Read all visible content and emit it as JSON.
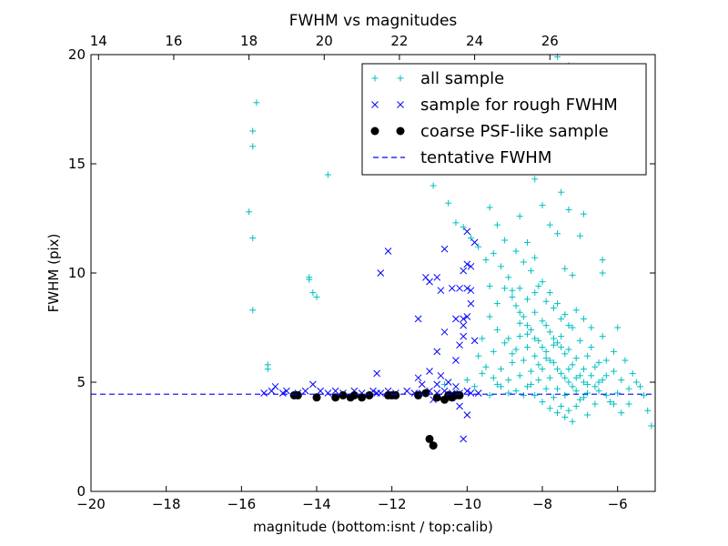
{
  "chart_data": {
    "type": "scatter",
    "title": "FWHM vs magnitudes",
    "xlabel": "magnitude (bottom:isnt / top:calib)",
    "ylabel": "FWHM (pix)",
    "xlim": [
      -20,
      -5
    ],
    "ylim": [
      0,
      20
    ],
    "x_ticks": [
      -20,
      -18,
      -16,
      -14,
      -12,
      -10,
      -8,
      -6
    ],
    "x_tick_labels": [
      "−20",
      "−18",
      "−16",
      "−14",
      "−12",
      "−10",
      "−8",
      "−6"
    ],
    "y_ticks": [
      0,
      5,
      10,
      15,
      20
    ],
    "y_tick_labels": [
      "0",
      "5",
      "10",
      "15",
      "20"
    ],
    "top_axis": {
      "offset": 33.8,
      "ticks": [
        14,
        16,
        18,
        20,
        22,
        24,
        26
      ],
      "tick_labels": [
        "14",
        "16",
        "18",
        "20",
        "22",
        "24",
        "26"
      ]
    },
    "grid": false,
    "legend_position": "top-right",
    "legend": [
      {
        "label": "all sample",
        "marker": "plus",
        "color": "#00bfbf"
      },
      {
        "label": "sample for rough FWHM",
        "marker": "x",
        "color": "#0000ff"
      },
      {
        "label": "coarse PSF-like sample",
        "marker": "dot",
        "color": "#000000"
      },
      {
        "label": "tentative FWHM",
        "marker": "dashed-line",
        "color": "#0000ff"
      }
    ],
    "series": [
      {
        "name": "all sample",
        "marker": "plus",
        "color": "#00bfbf",
        "points": [
          [
            -15.6,
            17.8
          ],
          [
            -15.7,
            16.5
          ],
          [
            -15.7,
            15.8
          ],
          [
            -15.8,
            12.8
          ],
          [
            -15.7,
            11.6
          ],
          [
            -15.7,
            8.3
          ],
          [
            -15.3,
            5.8
          ],
          [
            -15.3,
            5.6
          ],
          [
            -14.2,
            9.8
          ],
          [
            -14.2,
            9.7
          ],
          [
            -14.1,
            9.1
          ],
          [
            -14.0,
            8.9
          ],
          [
            -13.7,
            14.5
          ],
          [
            -11.2,
            15.6
          ],
          [
            -10.9,
            14.0
          ],
          [
            -10.5,
            13.2
          ],
          [
            -10.3,
            12.3
          ],
          [
            -10.1,
            12.1
          ],
          [
            -9.9,
            11.6
          ],
          [
            -9.7,
            11.2
          ],
          [
            -9.5,
            10.6
          ],
          [
            -9.3,
            10.9
          ],
          [
            -9.1,
            10.3
          ],
          [
            -8.9,
            9.8
          ],
          [
            -8.8,
            9.2
          ],
          [
            -10.6,
            4.9
          ],
          [
            -10.2,
            4.5
          ],
          [
            -10.0,
            5.1
          ],
          [
            -9.8,
            4.8
          ],
          [
            -9.6,
            5.4
          ],
          [
            -9.4,
            4.4
          ],
          [
            -9.2,
            4.9
          ],
          [
            -8.6,
            12.6
          ],
          [
            -8.4,
            11.4
          ],
          [
            -8.2,
            10.7
          ],
          [
            -8.0,
            13.1
          ],
          [
            -7.8,
            12.2
          ],
          [
            -7.6,
            11.8
          ],
          [
            -7.4,
            10.2
          ],
          [
            -7.2,
            9.9
          ],
          [
            -8.5,
            15.1
          ],
          [
            -8.2,
            14.3
          ],
          [
            -7.9,
            16.2
          ],
          [
            -7.7,
            14.8
          ],
          [
            -7.5,
            13.7
          ],
          [
            -7.3,
            12.9
          ],
          [
            -7.0,
            11.7
          ],
          [
            -8.2,
            17.3
          ],
          [
            -7.8,
            18.1
          ],
          [
            -7.6,
            19.9
          ],
          [
            -7.3,
            19.5
          ],
          [
            -6.9,
            12.7
          ],
          [
            -6.4,
            10.6
          ],
          [
            -6.4,
            10.0
          ],
          [
            -6.7,
            7.5
          ],
          [
            -6.4,
            7.1
          ],
          [
            -6.1,
            6.4
          ],
          [
            -6.0,
            7.5
          ],
          [
            -5.8,
            6.0
          ],
          [
            -5.6,
            5.4
          ],
          [
            -5.5,
            5.0
          ],
          [
            -5.3,
            4.4
          ],
          [
            -5.2,
            3.7
          ],
          [
            -5.1,
            3.0
          ],
          [
            -5.4,
            4.8
          ],
          [
            -5.7,
            4.0
          ],
          [
            -8.7,
            8.5
          ],
          [
            -8.5,
            8.0
          ],
          [
            -8.3,
            7.4
          ],
          [
            -8.1,
            6.9
          ],
          [
            -7.9,
            6.4
          ],
          [
            -7.7,
            5.9
          ],
          [
            -7.5,
            5.4
          ],
          [
            -7.3,
            5.0
          ],
          [
            -7.1,
            4.6
          ],
          [
            -6.9,
            4.3
          ],
          [
            -8.9,
            7.0
          ],
          [
            -8.7,
            6.5
          ],
          [
            -8.5,
            6.0
          ],
          [
            -8.3,
            5.5
          ],
          [
            -8.1,
            5.1
          ],
          [
            -7.9,
            4.7
          ],
          [
            -7.7,
            4.3
          ],
          [
            -7.5,
            3.9
          ],
          [
            -7.3,
            3.7
          ],
          [
            -7.1,
            3.9
          ],
          [
            -8.6,
            9.3
          ],
          [
            -8.4,
            8.8
          ],
          [
            -8.2,
            8.2
          ],
          [
            -8.0,
            7.8
          ],
          [
            -7.8,
            7.3
          ],
          [
            -7.6,
            6.8
          ],
          [
            -7.4,
            6.3
          ],
          [
            -7.2,
            5.8
          ],
          [
            -7.0,
            5.3
          ],
          [
            -6.8,
            4.9
          ],
          [
            -8.8,
            5.9
          ],
          [
            -8.6,
            5.3
          ],
          [
            -8.4,
            4.8
          ],
          [
            -8.2,
            4.4
          ],
          [
            -8.0,
            4.1
          ],
          [
            -7.8,
            3.8
          ],
          [
            -7.6,
            3.6
          ],
          [
            -7.4,
            3.4
          ],
          [
            -7.2,
            3.2
          ],
          [
            -6.8,
            3.5
          ],
          [
            -6.6,
            4.0
          ],
          [
            -6.5,
            4.6
          ],
          [
            -6.3,
            5.3
          ],
          [
            -6.2,
            4.1
          ],
          [
            -6.0,
            4.5
          ],
          [
            -6.6,
            5.7
          ],
          [
            -6.8,
            6.2
          ],
          [
            -7.0,
            6.9
          ],
          [
            -7.2,
            7.5
          ],
          [
            -7.4,
            8.1
          ],
          [
            -7.6,
            8.6
          ],
          [
            -7.8,
            9.1
          ],
          [
            -8.0,
            9.6
          ],
          [
            -8.2,
            9.1
          ],
          [
            -8.4,
            7.2
          ],
          [
            -8.6,
            7.7
          ],
          [
            -8.8,
            6.3
          ],
          [
            -9.0,
            6.8
          ],
          [
            -9.2,
            7.4
          ],
          [
            -9.4,
            8.0
          ],
          [
            -9.6,
            7.0
          ],
          [
            -9.7,
            6.2
          ],
          [
            -9.5,
            5.7
          ],
          [
            -9.3,
            6.4
          ],
          [
            -9.1,
            5.6
          ],
          [
            -8.9,
            5.1
          ],
          [
            -8.7,
            4.6
          ],
          [
            -8.5,
            4.4
          ],
          [
            -8.3,
            4.9
          ],
          [
            -8.1,
            5.8
          ],
          [
            -7.9,
            6.1
          ],
          [
            -7.7,
            6.7
          ],
          [
            -7.5,
            7.1
          ],
          [
            -7.3,
            7.6
          ],
          [
            -7.1,
            8.3
          ],
          [
            -6.9,
            7.9
          ],
          [
            -6.7,
            6.6
          ],
          [
            -6.5,
            5.9
          ],
          [
            -6.3,
            6.0
          ],
          [
            -6.1,
            5.5
          ],
          [
            -5.9,
            5.1
          ],
          [
            -5.7,
            4.7
          ],
          [
            -6.9,
            5.6
          ],
          [
            -7.1,
            6.1
          ],
          [
            -7.3,
            6.5
          ],
          [
            -7.5,
            7.9
          ],
          [
            -7.7,
            8.4
          ],
          [
            -7.9,
            8.7
          ],
          [
            -8.1,
            9.4
          ],
          [
            -8.3,
            10.1
          ],
          [
            -8.5,
            10.5
          ],
          [
            -8.7,
            11.0
          ],
          [
            -9.0,
            11.5
          ],
          [
            -9.2,
            12.2
          ],
          [
            -9.4,
            13.0
          ],
          [
            -9.0,
            9.3
          ],
          [
            -9.2,
            8.6
          ],
          [
            -9.4,
            9.4
          ],
          [
            -8.9,
            4.5
          ],
          [
            -9.1,
            4.8
          ],
          [
            -9.3,
            5.2
          ],
          [
            -7.4,
            4.4
          ],
          [
            -7.6,
            4.7
          ],
          [
            -7.8,
            5.2
          ],
          [
            -8.0,
            5.6
          ],
          [
            -8.2,
            6.2
          ],
          [
            -8.4,
            6.6
          ],
          [
            -8.6,
            7.1
          ],
          [
            -7.0,
            4.2
          ],
          [
            -6.8,
            4.5
          ],
          [
            -6.6,
            4.8
          ],
          [
            -6.4,
            5.1
          ],
          [
            -7.2,
            4.8
          ],
          [
            -7.4,
            5.2
          ],
          [
            -7.6,
            5.6
          ],
          [
            -7.8,
            6.0
          ],
          [
            -8.0,
            6.6
          ],
          [
            -8.2,
            7.0
          ],
          [
            -8.4,
            7.6
          ],
          [
            -8.6,
            8.2
          ],
          [
            -8.8,
            8.9
          ],
          [
            -7.9,
            7.6
          ],
          [
            -7.7,
            7.0
          ],
          [
            -7.5,
            6.6
          ],
          [
            -7.3,
            5.6
          ],
          [
            -7.1,
            5.2
          ],
          [
            -6.9,
            5.0
          ],
          [
            -6.7,
            5.3
          ],
          [
            -6.5,
            5.0
          ],
          [
            -6.3,
            4.4
          ],
          [
            -6.1,
            4.0
          ],
          [
            -5.9,
            3.6
          ]
        ]
      },
      {
        "name": "sample for rough FWHM",
        "marker": "x",
        "color": "#0000ff",
        "points": [
          [
            -15.4,
            4.5
          ],
          [
            -15.2,
            4.6
          ],
          [
            -15.1,
            4.8
          ],
          [
            -14.9,
            4.5
          ],
          [
            -14.8,
            4.6
          ],
          [
            -14.5,
            4.5
          ],
          [
            -14.3,
            4.6
          ],
          [
            -14.1,
            4.9
          ],
          [
            -13.9,
            4.6
          ],
          [
            -13.7,
            4.5
          ],
          [
            -13.5,
            4.6
          ],
          [
            -13.3,
            4.5
          ],
          [
            -13.0,
            4.6
          ],
          [
            -12.8,
            4.5
          ],
          [
            -12.5,
            4.6
          ],
          [
            -12.3,
            4.5
          ],
          [
            -12.1,
            4.6
          ],
          [
            -11.9,
            4.5
          ],
          [
            -11.6,
            4.6
          ],
          [
            -11.4,
            4.5
          ],
          [
            -11.2,
            4.5
          ],
          [
            -11.0,
            4.6
          ],
          [
            -10.8,
            4.5
          ],
          [
            -10.6,
            4.6
          ],
          [
            -10.4,
            4.5
          ],
          [
            -10.2,
            4.5
          ],
          [
            -10.0,
            4.6
          ],
          [
            -9.9,
            4.5
          ],
          [
            -9.7,
            4.5
          ],
          [
            -12.4,
            5.4
          ],
          [
            -12.1,
            11.0
          ],
          [
            -12.3,
            10.0
          ],
          [
            -11.0,
            9.6
          ],
          [
            -11.1,
            9.8
          ],
          [
            -10.8,
            9.8
          ],
          [
            -11.3,
            7.9
          ],
          [
            -10.6,
            11.1
          ],
          [
            -10.4,
            9.3
          ],
          [
            -10.2,
            9.3
          ],
          [
            -10.0,
            10.4
          ],
          [
            -9.9,
            10.3
          ],
          [
            -10.1,
            10.1
          ],
          [
            -9.8,
            11.4
          ],
          [
            -10.0,
            11.9
          ],
          [
            -10.0,
            9.3
          ],
          [
            -9.9,
            9.2
          ],
          [
            -10.7,
            9.2
          ],
          [
            -10.3,
            7.9
          ],
          [
            -10.1,
            7.9
          ],
          [
            -10.0,
            8.0
          ],
          [
            -9.9,
            8.6
          ],
          [
            -10.1,
            7.1
          ],
          [
            -10.1,
            7.6
          ],
          [
            -9.8,
            6.9
          ],
          [
            -10.2,
            6.7
          ],
          [
            -10.3,
            6.0
          ],
          [
            -10.6,
            7.3
          ],
          [
            -10.8,
            6.4
          ],
          [
            -11.0,
            5.5
          ],
          [
            -11.3,
            5.2
          ],
          [
            -10.8,
            4.9
          ],
          [
            -10.9,
            4.2
          ],
          [
            -10.5,
            5.0
          ],
          [
            -10.3,
            4.8
          ],
          [
            -10.2,
            3.9
          ],
          [
            -10.0,
            3.5
          ],
          [
            -10.1,
            2.4
          ],
          [
            -10.4,
            4.3
          ],
          [
            -11.2,
            4.9
          ],
          [
            -12.4,
            4.5
          ],
          [
            -10.7,
            5.3
          ]
        ]
      },
      {
        "name": "coarse PSF-like sample",
        "marker": "dot",
        "color": "#000000",
        "points": [
          [
            -14.6,
            4.4
          ],
          [
            -14.5,
            4.4
          ],
          [
            -14.0,
            4.3
          ],
          [
            -13.5,
            4.3
          ],
          [
            -13.3,
            4.4
          ],
          [
            -13.1,
            4.3
          ],
          [
            -13.0,
            4.4
          ],
          [
            -12.8,
            4.3
          ],
          [
            -12.6,
            4.4
          ],
          [
            -12.1,
            4.4
          ],
          [
            -12.0,
            4.4
          ],
          [
            -11.9,
            4.4
          ],
          [
            -11.3,
            4.4
          ],
          [
            -11.1,
            4.5
          ],
          [
            -10.8,
            4.3
          ],
          [
            -10.6,
            4.2
          ],
          [
            -10.5,
            4.4
          ],
          [
            -10.4,
            4.3
          ],
          [
            -10.3,
            4.4
          ],
          [
            -10.2,
            4.4
          ],
          [
            -11.0,
            2.4
          ],
          [
            -10.9,
            2.1
          ]
        ]
      },
      {
        "name": "tentative FWHM",
        "marker": "dashed-line",
        "color": "#0000ff",
        "y": 4.45
      }
    ]
  }
}
